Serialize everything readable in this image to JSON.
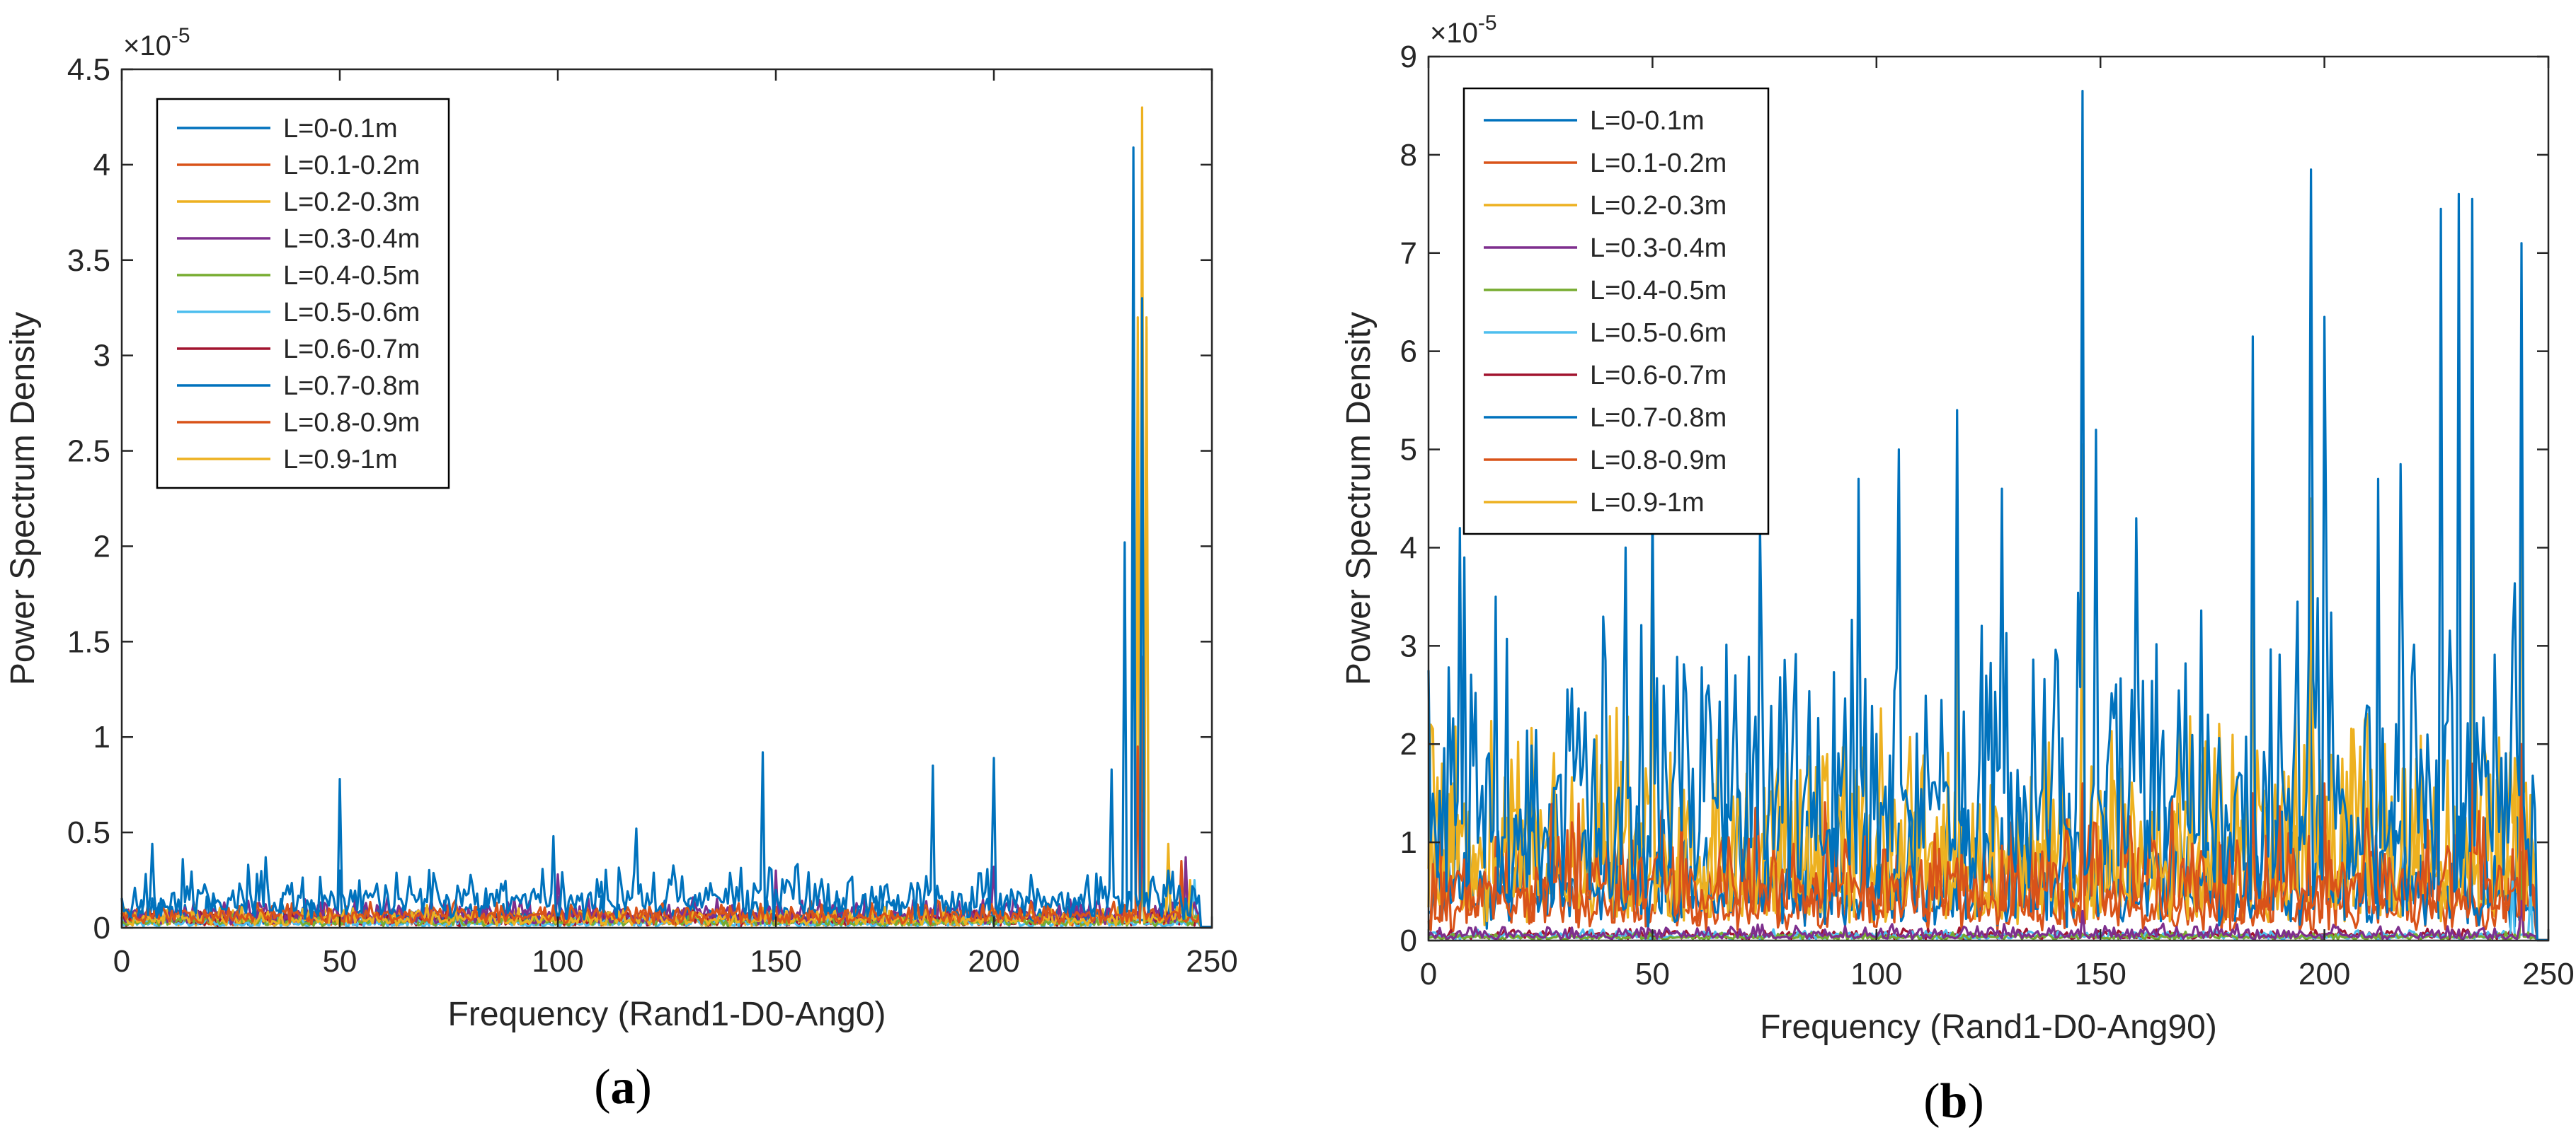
{
  "colors": {
    "axis": "#262626",
    "legend_box": "#000000",
    "background": "#ffffff"
  },
  "chart_data": [
    {
      "type": "line",
      "panel_label": "(a)",
      "panel_letter": "a",
      "title": "",
      "xlabel": "Frequency (Rand1-D0-Ang0)",
      "ylabel": "Power Spectrum Density",
      "y_multiplier": "×10",
      "y_exponent": "-5",
      "xlim": [
        0,
        250
      ],
      "ylim": [
        0,
        4.5
      ],
      "x_ticks": [
        "0",
        "50",
        "100",
        "150",
        "200",
        "250"
      ],
      "y_ticks": [
        "0",
        "0.5",
        "1",
        "1.5",
        "2",
        "2.5",
        "3",
        "3.5",
        "4",
        "4.5"
      ],
      "legend_position": "top-left",
      "series": [
        {
          "name": "L=0-0.1m",
          "color": "#0072BD",
          "baseline": 0.14,
          "noise": 0.12,
          "peaks": [
            [
              7,
              0.44
            ],
            [
              14,
              0.36
            ],
            [
              33,
              0.37
            ],
            [
              50,
              0.78
            ],
            [
              99,
              0.48
            ],
            [
              118,
              0.52
            ],
            [
              147,
              0.92
            ],
            [
              186,
              0.85
            ],
            [
              200,
              0.89
            ],
            [
              227,
              0.83
            ],
            [
              230,
              2.02
            ],
            [
              232,
              4.09
            ],
            [
              234,
              3.3
            ],
            [
              240,
              0.3
            ]
          ]
        },
        {
          "name": "L=0.1-0.2m",
          "color": "#D95319",
          "baseline": 0.06,
          "noise": 0.05,
          "peaks": [
            [
              233,
              0.95
            ],
            [
              234,
              1.42
            ],
            [
              243,
              0.35
            ]
          ]
        },
        {
          "name": "L=0.2-0.3m",
          "color": "#EDB120",
          "baseline": 0.04,
          "noise": 0.05,
          "peaks": [
            [
              233,
              3.2
            ],
            [
              234,
              4.3
            ],
            [
              235,
              3.15
            ],
            [
              240,
              0.44
            ],
            [
              245,
              0.25
            ]
          ]
        },
        {
          "name": "L=0.3-0.4m",
          "color": "#7E2F8E",
          "baseline": 0.06,
          "noise": 0.07,
          "peaks": [
            [
              100,
              0.28
            ],
            [
              150,
              0.3
            ],
            [
              200,
              0.32
            ],
            [
              234,
              0.6
            ],
            [
              244,
              0.37
            ]
          ]
        },
        {
          "name": "L=0.4-0.5m",
          "color": "#77AC30",
          "baseline": 0.03,
          "noise": 0.03,
          "peaks": [
            [
              234,
              0.3
            ]
          ]
        },
        {
          "name": "L=0.5-0.6m",
          "color": "#4DBEEE",
          "baseline": 0.02,
          "noise": 0.03,
          "peaks": [
            [
              234,
              0.25
            ],
            [
              246,
              0.25
            ]
          ]
        },
        {
          "name": "L=0.6-0.7m",
          "color": "#A2142F",
          "baseline": 0.03,
          "noise": 0.04,
          "peaks": [
            [
              234,
              0.8
            ],
            [
              244,
              0.35
            ]
          ]
        },
        {
          "name": "L=0.7-0.8m",
          "color": "#0072BD",
          "baseline": 0.05,
          "noise": 0.08,
          "peaks": [
            [
              50,
              0.3
            ],
            [
              232,
              2.4
            ]
          ]
        },
        {
          "name": "L=0.8-0.9m",
          "color": "#D95319",
          "baseline": 0.04,
          "noise": 0.05,
          "peaks": [
            [
              234,
              0.7
            ]
          ]
        },
        {
          "name": "L=0.9-1m",
          "color": "#EDB120",
          "baseline": 0.03,
          "noise": 0.05,
          "peaks": [
            [
              233,
              2.8
            ],
            [
              234,
              3.9
            ],
            [
              235,
              3.2
            ],
            [
              240,
              0.4
            ]
          ]
        }
      ]
    },
    {
      "type": "line",
      "panel_label": "(b)",
      "panel_letter": "b",
      "title": "",
      "xlabel": "Frequency (Rand1-D0-Ang90)",
      "ylabel": "Power Spectrum Density",
      "y_multiplier": "×10",
      "y_exponent": "-5",
      "xlim": [
        0,
        250
      ],
      "ylim": [
        0,
        9
      ],
      "x_ticks": [
        "0",
        "50",
        "100",
        "150",
        "200",
        "250"
      ],
      "y_ticks": [
        "0",
        "1",
        "2",
        "3",
        "4",
        "5",
        "6",
        "7",
        "8",
        "9"
      ],
      "legend_position": "top-left",
      "series": [
        {
          "name": "L=0-0.1m",
          "color": "#0072BD",
          "baseline": 1.2,
          "noise": 1.6,
          "peaks": [
            [
              7,
              4.2
            ],
            [
              8,
              3.9
            ],
            [
              15,
              3.5
            ],
            [
              44,
              4.0
            ],
            [
              50,
              4.5
            ],
            [
              74,
              4.2
            ],
            [
              96,
              4.7
            ],
            [
              105,
              5.0
            ],
            [
              118,
              5.4
            ],
            [
              128,
              4.6
            ],
            [
              146,
              8.65
            ],
            [
              149,
              5.2
            ],
            [
              158,
              4.3
            ],
            [
              184,
              6.15
            ],
            [
              197,
              7.85
            ],
            [
              200,
              6.35
            ],
            [
              212,
              4.7
            ],
            [
              217,
              4.85
            ],
            [
              226,
              7.45
            ],
            [
              230,
              7.6
            ],
            [
              233,
              7.55
            ],
            [
              244,
              7.1
            ]
          ]
        },
        {
          "name": "L=0.1-0.2m",
          "color": "#D95319",
          "baseline": 0.5,
          "noise": 0.6,
          "peaks": [
            [
              146,
              1.6
            ],
            [
              184,
              1.5
            ],
            [
              200,
              1.6
            ],
            [
              233,
              1.8
            ],
            [
              244,
              2.0
            ]
          ]
        },
        {
          "name": "L=0.2-0.3m",
          "color": "#EDB120",
          "baseline": 0.6,
          "noise": 1.3,
          "peaks": [
            [
              50,
              4.3
            ],
            [
              118,
              3.2
            ],
            [
              146,
              5.05
            ],
            [
              184,
              3.5
            ],
            [
              197,
              4.5
            ],
            [
              233,
              4.45
            ],
            [
              244,
              6.3
            ]
          ]
        },
        {
          "name": "L=0.3-0.4m",
          "color": "#7E2F8E",
          "baseline": 0.05,
          "noise": 0.08,
          "peaks": [
            [
              146,
              0.3
            ],
            [
              244,
              0.4
            ]
          ]
        },
        {
          "name": "L=0.4-0.5m",
          "color": "#77AC30",
          "baseline": 0.03,
          "noise": 0.04,
          "peaks": [
            [
              244,
              0.9
            ]
          ]
        },
        {
          "name": "L=0.5-0.6m",
          "color": "#4DBEEE",
          "baseline": 0.04,
          "noise": 0.05,
          "peaks": [
            [
              242,
              0.6
            ],
            [
              246,
              0.5
            ]
          ]
        },
        {
          "name": "L=0.6-0.7m",
          "color": "#A2142F",
          "baseline": 0.05,
          "noise": 0.05,
          "peaks": [
            [
              244,
              0.5
            ]
          ]
        },
        {
          "name": "L=0.7-0.8m",
          "color": "#0072BD",
          "baseline": 0.4,
          "noise": 0.8,
          "peaks": [
            [
              146,
              4.5
            ],
            [
              197,
              3.0
            ]
          ]
        },
        {
          "name": "L=0.8-0.9m",
          "color": "#D95319",
          "baseline": 0.3,
          "noise": 0.5,
          "peaks": [
            [
              146,
              1.4
            ],
            [
              244,
              1.8
            ]
          ]
        },
        {
          "name": "L=0.9-1m",
          "color": "#EDB120",
          "baseline": 0.5,
          "noise": 1.1,
          "peaks": [
            [
              50,
              3.5
            ],
            [
              146,
              4.2
            ],
            [
              244,
              5.2
            ]
          ]
        }
      ]
    }
  ]
}
